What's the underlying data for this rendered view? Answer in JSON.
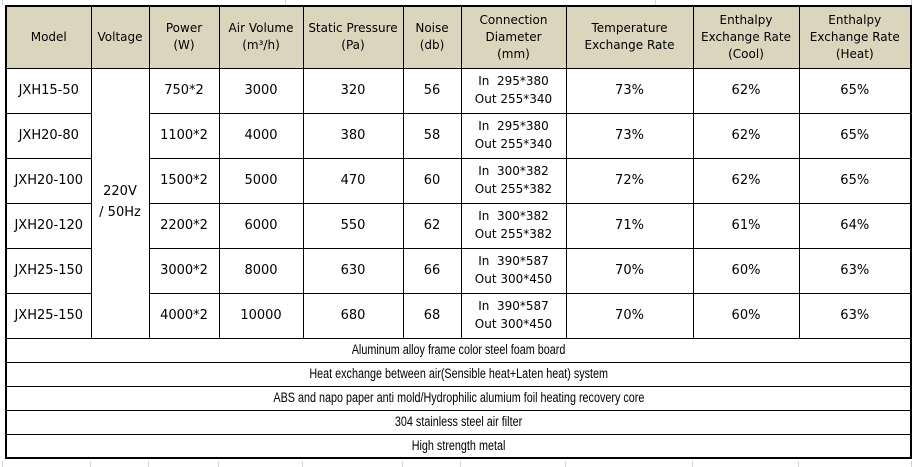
{
  "colors": {
    "header_bg": "#DBD5BE",
    "border": "#000000",
    "text": "#000000"
  },
  "table": {
    "columns": [
      "Model",
      "Voltage",
      "Power\n(W)",
      "Air Volume\n(m³/h)",
      "Static Pressure\n(Pa)",
      "Noise\n(db)",
      "Connection\nDiameter\n(mm)",
      "Temperature\nExchange Rate",
      "Enthalpy\nExchange Rate\n(Cool)",
      "Enthalpy\nExchange Rate\n(Heat)"
    ],
    "voltage": "220V\n/ 50Hz",
    "rows": [
      {
        "model": "JXH15-50",
        "power": "750*2",
        "air_volume": "3000",
        "static_pressure": "320",
        "noise": "56",
        "connection": "In  295*380\nOut 255*340",
        "temp_exchange_rate": "73%",
        "enthalpy_cool": "62%",
        "enthalpy_heat": "65%"
      },
      {
        "model": "JXH20-80",
        "power": "1100*2",
        "air_volume": "4000",
        "static_pressure": "380",
        "noise": "58",
        "connection": "In  295*380\nOut 255*340",
        "temp_exchange_rate": "73%",
        "enthalpy_cool": "62%",
        "enthalpy_heat": "65%"
      },
      {
        "model": "JXH20-100",
        "power": "1500*2",
        "air_volume": "5000",
        "static_pressure": "470",
        "noise": "60",
        "connection": "In  300*382\nOut 255*382",
        "temp_exchange_rate": "72%",
        "enthalpy_cool": "62%",
        "enthalpy_heat": "65%"
      },
      {
        "model": "JXH20-120",
        "power": "2200*2",
        "air_volume": "6000",
        "static_pressure": "550",
        "noise": "62",
        "connection": "In  300*382\nOut 255*382",
        "temp_exchange_rate": "71%",
        "enthalpy_cool": "61%",
        "enthalpy_heat": "64%"
      },
      {
        "model": "JXH25-150",
        "power": "3000*2",
        "air_volume": "8000",
        "static_pressure": "630",
        "noise": "66",
        "connection": "In  390*587\nOut 300*450",
        "temp_exchange_rate": "70%",
        "enthalpy_cool": "60%",
        "enthalpy_heat": "63%"
      },
      {
        "model": "JXH25-150",
        "power": "4000*2",
        "air_volume": "10000",
        "static_pressure": "680",
        "noise": "68",
        "connection": "In  390*587\nOut 300*450",
        "temp_exchange_rate": "70%",
        "enthalpy_cool": "60%",
        "enthalpy_heat": "63%"
      }
    ],
    "footer_rows": [
      "Aluminum alloy frame color steel foam board",
      "Heat exchange between air(Sensible heat+Laten heat) system",
      "ABS and napo paper anti mold/Hydrophilic alumium foil heating recovery core",
      "304 stainless steel air filter",
      "High strength metal"
    ]
  }
}
